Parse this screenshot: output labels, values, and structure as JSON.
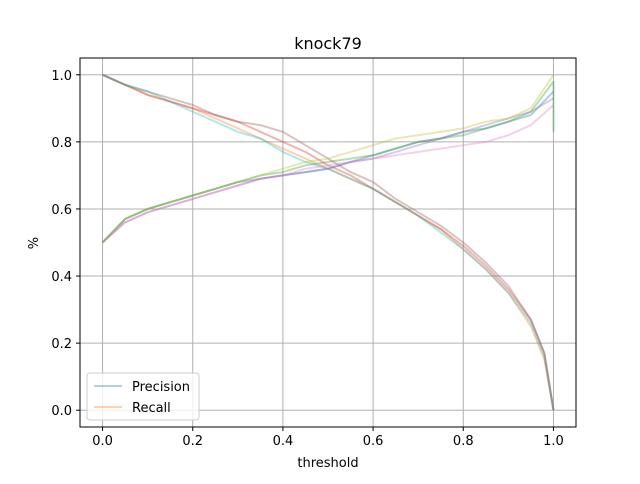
{
  "chart_data": {
    "type": "line",
    "title": "knock79",
    "xlabel": "threshold",
    "ylabel": "%",
    "xlim": [
      -0.05,
      1.05
    ],
    "ylim": [
      -0.05,
      1.05
    ],
    "xticks": [
      "0.0",
      "0.2",
      "0.4",
      "0.6",
      "0.8",
      "1.0"
    ],
    "xtick_values": [
      0.0,
      0.2,
      0.4,
      0.6,
      0.8,
      1.0
    ],
    "yticks": [
      "0.0",
      "0.2",
      "0.4",
      "0.6",
      "0.8",
      "1.0"
    ],
    "ytick_values": [
      0.0,
      0.2,
      0.4,
      0.6,
      0.8,
      1.0
    ],
    "grid": true,
    "legend": {
      "placement": "lower-left",
      "entries": [
        {
          "name": "Precision",
          "color": "#1f77b4"
        },
        {
          "name": "Recall",
          "color": "#ff7f0e"
        }
      ]
    },
    "series_alpha": 0.35,
    "series": [
      {
        "name": "Precision",
        "color": "#1f77b4",
        "x": [
          0.0,
          0.05,
          0.1,
          0.15,
          0.2,
          0.25,
          0.3,
          0.35,
          0.4,
          0.45,
          0.5,
          0.55,
          0.6,
          0.65,
          0.7,
          0.75,
          0.8,
          0.85,
          0.9,
          0.95,
          1.0
        ],
        "y": [
          0.5,
          0.57,
          0.6,
          0.62,
          0.64,
          0.66,
          0.68,
          0.69,
          0.7,
          0.71,
          0.72,
          0.74,
          0.76,
          0.78,
          0.8,
          0.81,
          0.83,
          0.84,
          0.86,
          0.88,
          0.95
        ]
      },
      {
        "name": "Recall",
        "color": "#ff7f0e",
        "x": [
          0.0,
          0.05,
          0.1,
          0.15,
          0.2,
          0.25,
          0.3,
          0.35,
          0.4,
          0.45,
          0.5,
          0.55,
          0.6,
          0.65,
          0.7,
          0.75,
          0.8,
          0.85,
          0.9,
          0.95,
          0.98,
          1.0
        ],
        "y": [
          1.0,
          0.97,
          0.94,
          0.92,
          0.9,
          0.87,
          0.84,
          0.81,
          0.78,
          0.75,
          0.72,
          0.69,
          0.66,
          0.62,
          0.58,
          0.54,
          0.48,
          0.42,
          0.35,
          0.25,
          0.15,
          0.0
        ]
      },
      {
        "color": "#2ca02c",
        "x": [
          0.0,
          0.05,
          0.1,
          0.15,
          0.2,
          0.25,
          0.3,
          0.35,
          0.4,
          0.45,
          0.5,
          0.55,
          0.6,
          0.65,
          0.7,
          0.75,
          0.8,
          0.85,
          0.9,
          0.95,
          1.0,
          1.0
        ],
        "y": [
          0.5,
          0.57,
          0.6,
          0.62,
          0.64,
          0.66,
          0.68,
          0.7,
          0.71,
          0.73,
          0.74,
          0.75,
          0.76,
          0.78,
          0.8,
          0.81,
          0.82,
          0.84,
          0.86,
          0.89,
          0.98,
          0.83
        ]
      },
      {
        "color": "#d62728",
        "x": [
          0.0,
          0.05,
          0.1,
          0.15,
          0.2,
          0.25,
          0.3,
          0.35,
          0.4,
          0.45,
          0.5,
          0.55,
          0.6,
          0.65,
          0.7,
          0.75,
          0.8,
          0.85,
          0.9,
          0.95,
          0.98,
          1.0
        ],
        "y": [
          1.0,
          0.97,
          0.94,
          0.92,
          0.9,
          0.88,
          0.86,
          0.83,
          0.8,
          0.77,
          0.73,
          0.7,
          0.66,
          0.62,
          0.58,
          0.54,
          0.49,
          0.43,
          0.36,
          0.27,
          0.17,
          0.0
        ]
      },
      {
        "color": "#9467bd",
        "x": [
          0.0,
          0.05,
          0.1,
          0.15,
          0.2,
          0.25,
          0.3,
          0.35,
          0.4,
          0.45,
          0.5,
          0.55,
          0.6,
          0.65,
          0.7,
          0.75,
          0.8,
          0.85,
          0.9,
          0.95,
          1.0
        ],
        "y": [
          0.5,
          0.56,
          0.59,
          0.61,
          0.63,
          0.65,
          0.67,
          0.69,
          0.7,
          0.71,
          0.72,
          0.74,
          0.75,
          0.77,
          0.79,
          0.81,
          0.83,
          0.85,
          0.87,
          0.89,
          0.93
        ]
      },
      {
        "color": "#8c564b",
        "x": [
          0.0,
          0.05,
          0.1,
          0.15,
          0.2,
          0.25,
          0.3,
          0.35,
          0.4,
          0.45,
          0.5,
          0.55,
          0.6,
          0.65,
          0.7,
          0.75,
          0.8,
          0.85,
          0.9,
          0.95,
          0.98,
          1.0
        ],
        "y": [
          1.0,
          0.97,
          0.95,
          0.93,
          0.91,
          0.88,
          0.86,
          0.85,
          0.83,
          0.79,
          0.75,
          0.71,
          0.68,
          0.63,
          0.59,
          0.55,
          0.5,
          0.44,
          0.37,
          0.27,
          0.17,
          0.0
        ]
      },
      {
        "color": "#e377c2",
        "x": [
          0.0,
          0.05,
          0.1,
          0.15,
          0.2,
          0.25,
          0.3,
          0.35,
          0.4,
          0.45,
          0.5,
          0.55,
          0.6,
          0.65,
          0.7,
          0.75,
          0.8,
          0.85,
          0.9,
          0.95,
          1.0
        ],
        "y": [
          0.5,
          0.56,
          0.59,
          0.61,
          0.63,
          0.65,
          0.67,
          0.69,
          0.7,
          0.72,
          0.73,
          0.74,
          0.75,
          0.76,
          0.77,
          0.78,
          0.79,
          0.8,
          0.82,
          0.85,
          0.91
        ]
      },
      {
        "color": "#17becf",
        "x": [
          0.0,
          0.05,
          0.1,
          0.15,
          0.2,
          0.25,
          0.3,
          0.35,
          0.4,
          0.45,
          0.5,
          0.55,
          0.6,
          0.65,
          0.7,
          0.75,
          0.8,
          0.85,
          0.9,
          0.95,
          0.98,
          1.0
        ],
        "y": [
          1.0,
          0.97,
          0.95,
          0.92,
          0.89,
          0.86,
          0.83,
          0.81,
          0.77,
          0.74,
          0.72,
          0.69,
          0.66,
          0.62,
          0.58,
          0.53,
          0.48,
          0.42,
          0.35,
          0.26,
          0.16,
          0.0
        ]
      },
      {
        "color": "#bcbd22",
        "x": [
          0.0,
          0.05,
          0.1,
          0.15,
          0.2,
          0.25,
          0.3,
          0.35,
          0.4,
          0.45,
          0.5,
          0.55,
          0.6,
          0.65,
          0.7,
          0.75,
          0.8,
          0.85,
          0.9,
          0.95,
          1.0
        ],
        "y": [
          0.5,
          0.57,
          0.6,
          0.62,
          0.64,
          0.66,
          0.68,
          0.7,
          0.72,
          0.74,
          0.75,
          0.77,
          0.79,
          0.81,
          0.82,
          0.83,
          0.84,
          0.86,
          0.87,
          0.9,
          1.0
        ]
      }
    ]
  }
}
